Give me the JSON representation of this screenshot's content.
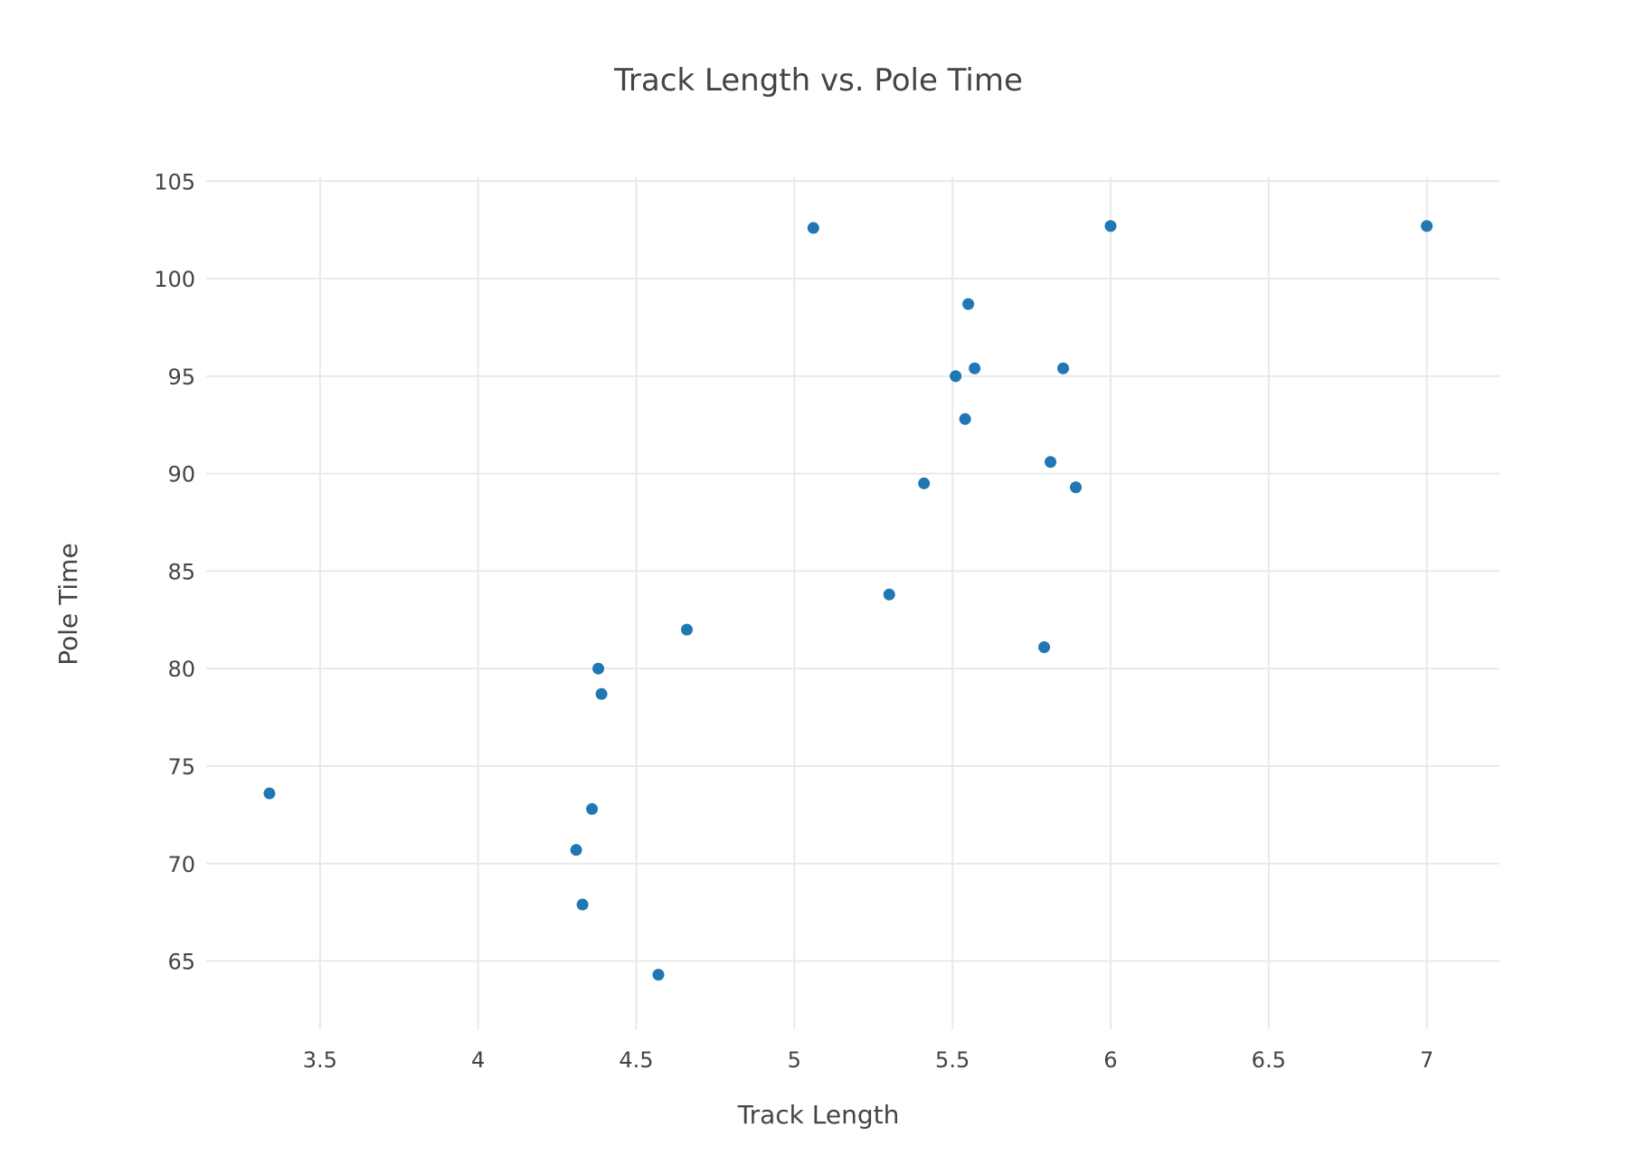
{
  "chart_data": {
    "type": "scatter",
    "title": "Track Length vs. Pole Time",
    "xlabel": "Track Length",
    "ylabel": "Pole Time",
    "xlim": [
      3.14,
      7.23
    ],
    "ylim": [
      61.5,
      105.2
    ],
    "xticks": [
      3.5,
      4,
      4.5,
      5,
      5.5,
      6,
      6.5,
      7
    ],
    "xtick_labels": [
      "3.5",
      "4",
      "4.5",
      "5",
      "5.5",
      "6",
      "6.5",
      "7"
    ],
    "yticks": [
      65,
      70,
      75,
      80,
      85,
      90,
      95,
      100,
      105
    ],
    "ytick_labels": [
      "65",
      "70",
      "75",
      "80",
      "85",
      "90",
      "95",
      "100",
      "105"
    ],
    "grid": true,
    "marker_color": "#1f77b4",
    "series": [
      {
        "points": [
          {
            "x": 3.34,
            "y": 73.6
          },
          {
            "x": 4.31,
            "y": 70.7
          },
          {
            "x": 4.33,
            "y": 67.9
          },
          {
            "x": 4.36,
            "y": 72.8
          },
          {
            "x": 4.38,
            "y": 80.0
          },
          {
            "x": 4.39,
            "y": 78.7
          },
          {
            "x": 4.57,
            "y": 64.3
          },
          {
            "x": 4.66,
            "y": 82.0
          },
          {
            "x": 5.06,
            "y": 102.6
          },
          {
            "x": 5.3,
            "y": 83.8
          },
          {
            "x": 5.41,
            "y": 89.5
          },
          {
            "x": 5.51,
            "y": 95.0
          },
          {
            "x": 5.54,
            "y": 92.8
          },
          {
            "x": 5.55,
            "y": 98.7
          },
          {
            "x": 5.57,
            "y": 95.4
          },
          {
            "x": 5.79,
            "y": 81.1
          },
          {
            "x": 5.81,
            "y": 90.6
          },
          {
            "x": 5.85,
            "y": 95.4
          },
          {
            "x": 5.89,
            "y": 89.3
          },
          {
            "x": 6.0,
            "y": 102.7
          },
          {
            "x": 7.0,
            "y": 102.7
          }
        ]
      }
    ]
  }
}
